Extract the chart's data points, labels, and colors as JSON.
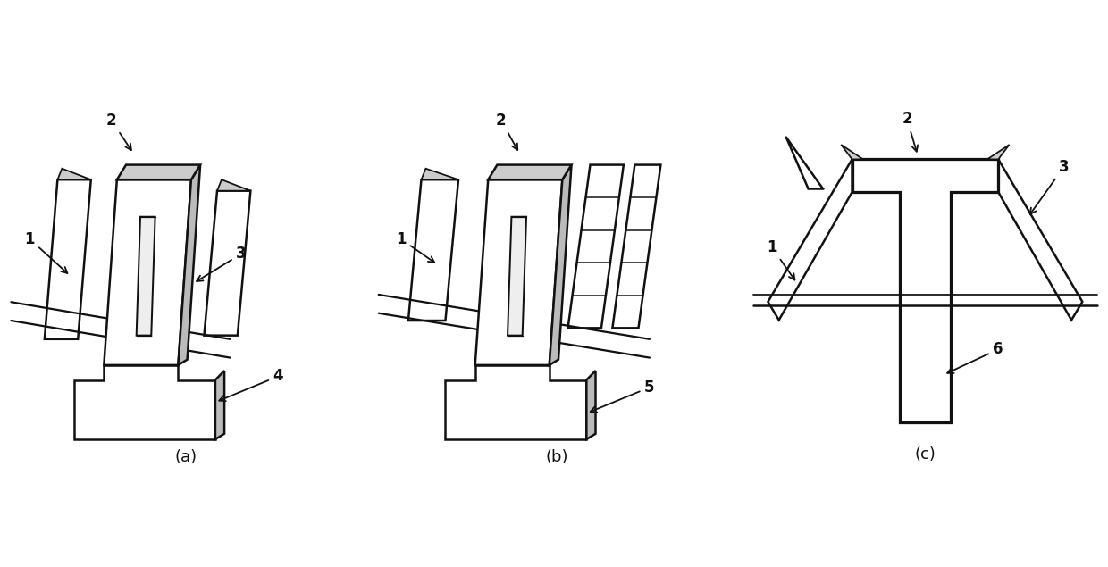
{
  "bg_color": "#ffffff",
  "line_color": "#111111",
  "line_width": 1.8,
  "fig_labels": [
    "(a)",
    "(b)",
    "(c)"
  ]
}
